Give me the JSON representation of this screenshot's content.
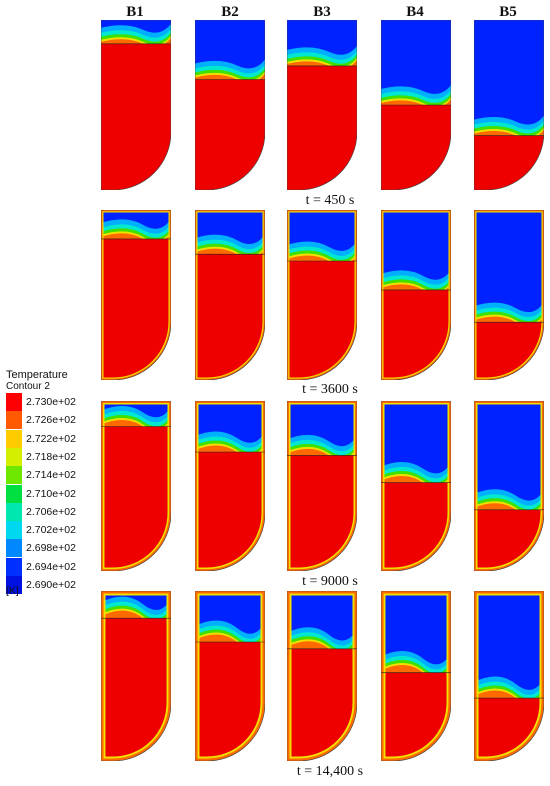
{
  "columns": [
    "B1",
    "B2",
    "B3",
    "B4",
    "B5"
  ],
  "time_labels": [
    "t = 450 s",
    "t = 3600 s",
    "t = 9000 s",
    "t = 14,400 s"
  ],
  "legend": {
    "title": "Temperature",
    "subtitle": "Contour 2",
    "unit": "[K]",
    "levels": [
      {
        "label": "2.730e+02",
        "color": "#ff0000"
      },
      {
        "label": "2.726e+02",
        "color": "#ff5a00"
      },
      {
        "label": "2.722e+02",
        "color": "#ffcc00"
      },
      {
        "label": "2.718e+02",
        "color": "#d4f000"
      },
      {
        "label": "2.714e+02",
        "color": "#6ee800"
      },
      {
        "label": "2.710e+02",
        "color": "#00e040"
      },
      {
        "label": "2.706e+02",
        "color": "#00e8b0"
      },
      {
        "label": "2.702e+02",
        "color": "#00d8f0"
      },
      {
        "label": "2.698e+02",
        "color": "#0088ff"
      },
      {
        "label": "2.694e+02",
        "color": "#0030ff"
      },
      {
        "label": "2.690e+02",
        "color": "#0010e0"
      }
    ]
  },
  "contour_colors": {
    "warm": "#ee0000",
    "orange": "#ff6a00",
    "yellow": "#f0e000",
    "green": "#40e000",
    "cyan": "#00e8d0",
    "sky": "#00b0ff",
    "cold": "#0022ff"
  },
  "interface_levels": [
    [
      0.14,
      0.35,
      0.27,
      0.5,
      0.68
    ],
    [
      0.17,
      0.26,
      0.3,
      0.47,
      0.66
    ],
    [
      0.15,
      0.3,
      0.32,
      0.48,
      0.64
    ],
    [
      0.16,
      0.3,
      0.34,
      0.48,
      0.63
    ]
  ]
}
